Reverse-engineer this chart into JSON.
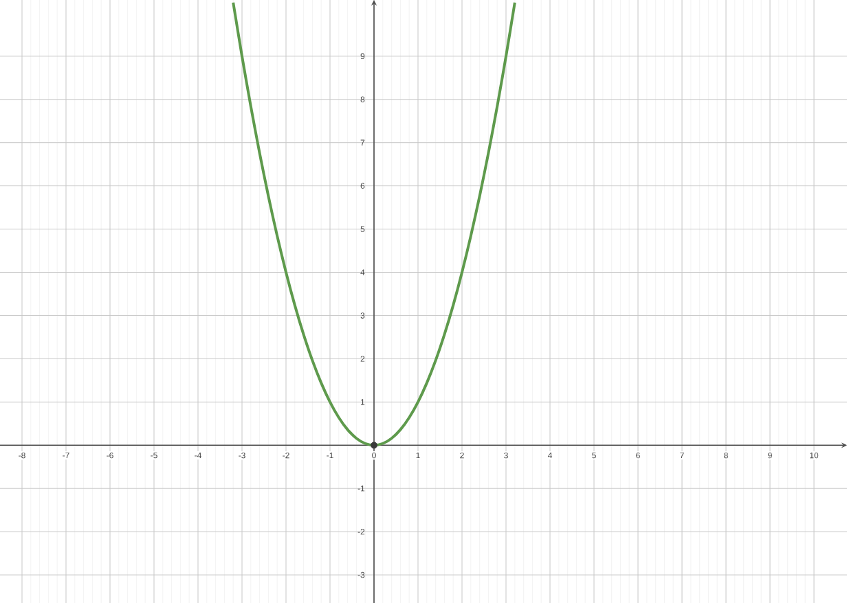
{
  "chart_data": {
    "type": "line",
    "series": [
      {
        "color": "#5e9a4c",
        "marker": "none",
        "x": [
          -3.2,
          -3,
          -2.8,
          -2.6,
          -2.4,
          -2.2,
          -2,
          -1.8,
          -1.6,
          -1.4,
          -1.2,
          -1,
          -0.8,
          -0.6,
          -0.4,
          -0.2,
          0,
          0.2,
          0.4,
          0.6,
          0.8,
          1,
          1.2,
          1.4,
          1.6,
          1.8,
          2,
          2.2,
          2.4,
          2.6,
          2.8,
          3,
          3.2
        ],
        "values": [
          10.24,
          9,
          7.84,
          6.76,
          5.76,
          4.84,
          4,
          3.24,
          2.56,
          1.96,
          1.44,
          1,
          0.64,
          0.36,
          0.16,
          0.04,
          0,
          0.04,
          0.16,
          0.36,
          0.64,
          1,
          1.44,
          1.96,
          2.56,
          3.24,
          4,
          4.84,
          5.76,
          6.76,
          7.84,
          9,
          10.24
        ]
      },
      {
        "type": "scatter",
        "color": "#3a3a3a",
        "marker": "circle",
        "x": [
          0
        ],
        "values": [
          0
        ]
      }
    ],
    "xlim": [
      -8.5,
      10.75
    ],
    "ylim": [
      -3.65,
      10.3
    ],
    "xticks": [
      -8,
      -7,
      -6,
      -5,
      -4,
      -3,
      -2,
      -1,
      0,
      1,
      2,
      3,
      4,
      5,
      6,
      7,
      8,
      9,
      10
    ],
    "yticks": [
      -3,
      -2,
      -1,
      1,
      2,
      3,
      4,
      5,
      6,
      7,
      8,
      9
    ],
    "grid": true
  }
}
